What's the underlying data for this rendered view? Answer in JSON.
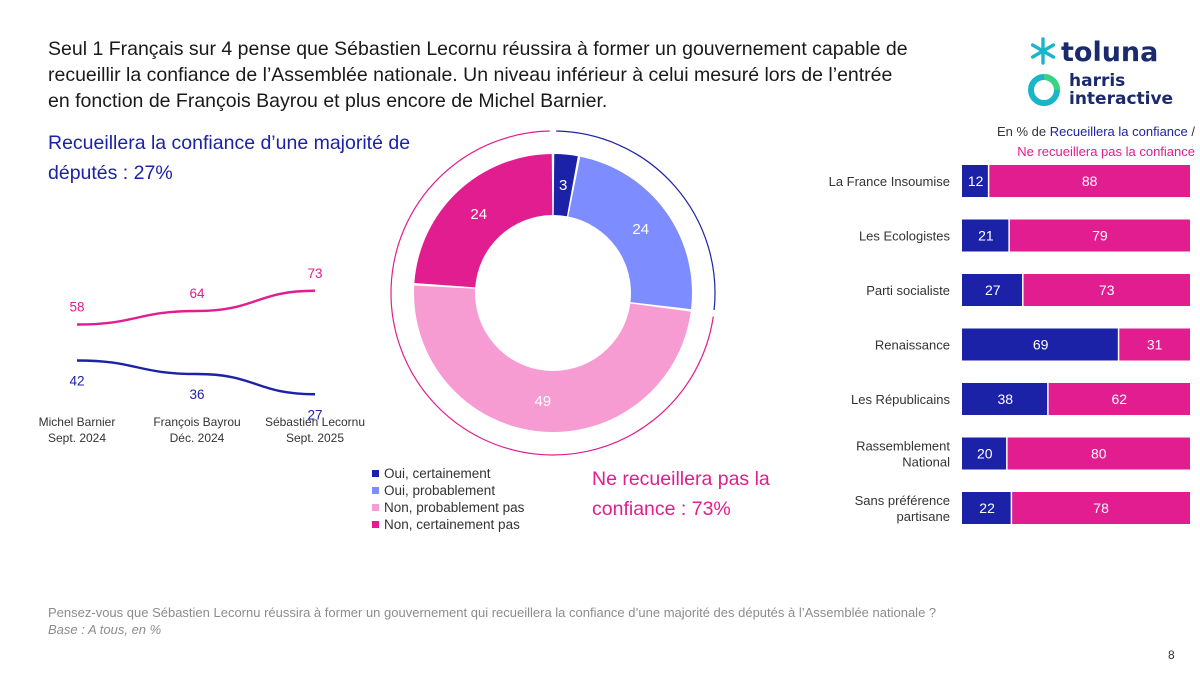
{
  "headline": [
    "Seul 1 Français sur 4 pense que Sébastien Lecornu réussira à former un gouvernement capable de",
    "recueillir la confiance de l’Assemblée nationale. Un niveau inférieur à celui mesuré lors de l’entrée",
    "en fonction de François Bayrou et plus encore de Michel Barnier."
  ],
  "logo": {
    "brand1": "toluna",
    "brand2_line1": "harris",
    "brand2_line2": "interactive"
  },
  "colors": {
    "dark_blue": "#1c22a8",
    "light_blue": "#7d8cff",
    "light_pink": "#f79bd3",
    "dark_pink": "#e11d8f",
    "teal": "#18b6c8"
  },
  "left_subtitle": [
    "Recueillera la confiance d’une majorité de",
    "députés : 27%"
  ],
  "right_subtitle": [
    "Ne recueillera pas la",
    "confiance : 73%"
  ],
  "legend": [
    {
      "label": "Oui, certainement",
      "color": "#1c22a8"
    },
    {
      "label": "Oui, probablement",
      "color": "#7d8cff"
    },
    {
      "label": "Non, probablement pas",
      "color": "#f79bd3"
    },
    {
      "label": "Non, certainement pas",
      "color": "#e11d8f"
    }
  ],
  "bar_header": {
    "prefix": "En % de ",
    "positive": "Recueillera la confiance",
    "separator": " /",
    "negative": "Ne recueillera pas la confiance"
  },
  "footnote": {
    "question": "Pensez-vous que Sébastien Lecornu réussira à former un gouvernement qui recueillera la confiance d’une majorité des députés à l’Assemblée nationale ?",
    "base": "Base : A tous, en %"
  },
  "page_number": "8",
  "chart_data": [
    {
      "type": "line",
      "categories": [
        [
          "Michel Barnier",
          "Sept. 2024"
        ],
        [
          "François Bayrou",
          "Déc. 2024"
        ],
        [
          "Sébastien Lecornu",
          "Sept. 2025"
        ]
      ],
      "series": [
        {
          "values": [
            58,
            64,
            73
          ],
          "color": "#e11d8f"
        },
        {
          "values": [
            42,
            36,
            27
          ],
          "color": "#1c22a8"
        }
      ],
      "ylim": [
        20,
        80
      ]
    },
    {
      "type": "pie",
      "labels": [
        "Oui, certainement",
        "Oui, probablement",
        "Non, probablement pas",
        "Non, certainement pas"
      ],
      "values": [
        3,
        24,
        49,
        24
      ],
      "colors": [
        "#1c22a8",
        "#7d8cff",
        "#f79bd3",
        "#e11d8f"
      ],
      "donut": true
    },
    {
      "type": "bar",
      "orientation": "horizontal",
      "stacked": true,
      "categories": [
        "La France Insoumise",
        "Les Ecologistes",
        "Parti socialiste",
        "Renaissance",
        "Les Républicains",
        "Rassemblement National",
        "Sans préférence partisane"
      ],
      "category_lines": [
        [
          "La France Insoumise"
        ],
        [
          "Les Ecologistes"
        ],
        [
          "Parti socialiste"
        ],
        [
          "Renaissance"
        ],
        [
          "Les Républicains"
        ],
        [
          "Rassemblement",
          "National"
        ],
        [
          "Sans préférence",
          "partisane"
        ]
      ],
      "series": [
        {
          "name": "Recueillera la confiance",
          "values": [
            12,
            21,
            27,
            69,
            38,
            20,
            22
          ],
          "color": "#1c22a8"
        },
        {
          "name": "Ne recueillera pas la confiance",
          "values": [
            88,
            79,
            73,
            31,
            62,
            80,
            78
          ],
          "color": "#e11d8f"
        }
      ],
      "xlim": [
        0,
        100
      ]
    }
  ]
}
